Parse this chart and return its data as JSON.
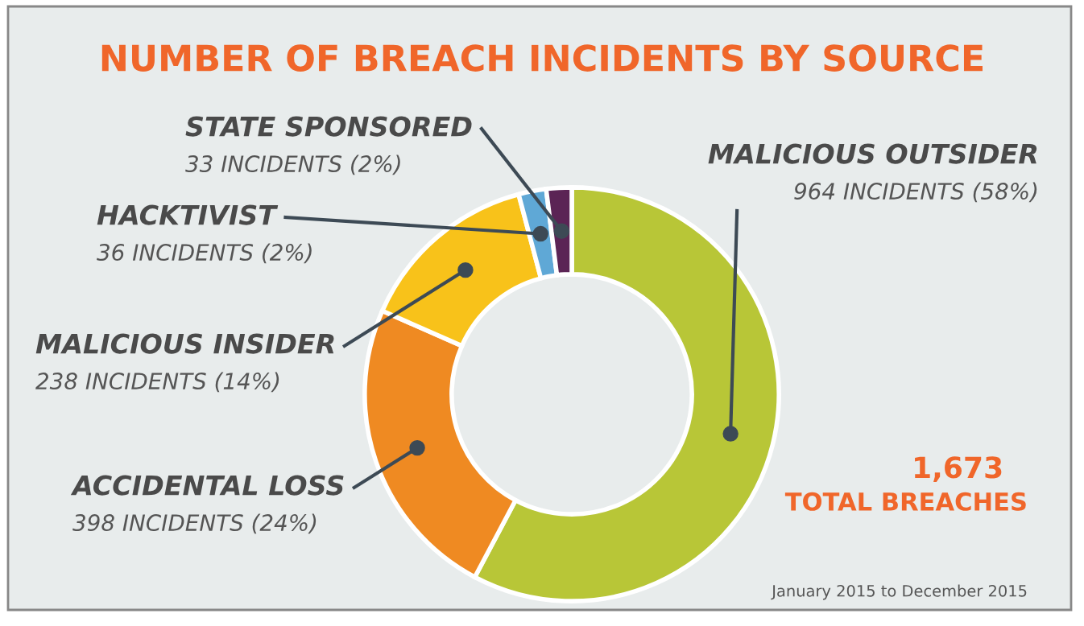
{
  "chart_data": {
    "type": "donut",
    "title": "NUMBER OF BREACH INCIDENTS BY SOURCE",
    "categories": [
      "MALICIOUS OUTSIDER",
      "ACCIDENTAL LOSS",
      "MALICIOUS INSIDER",
      "HACKTIVIST",
      "STATE SPONSORED"
    ],
    "values": [
      964,
      398,
      238,
      36,
      33
    ],
    "colors": [
      "#b8c637",
      "#ef8a22",
      "#f8c21a",
      "#5fa8d6",
      "#5b2455"
    ],
    "value_labels": [
      "964 INCIDENTS (58%)",
      "398 INCIDENTS (24%)",
      "238 INCIDENTS (14%)",
      "36 INCIDENTS (2%)",
      "33 INCIDENTS (2%)"
    ],
    "annotations": [
      "1,673",
      "TOTAL BREACHES",
      "January 2015 to December 2015"
    ]
  }
}
